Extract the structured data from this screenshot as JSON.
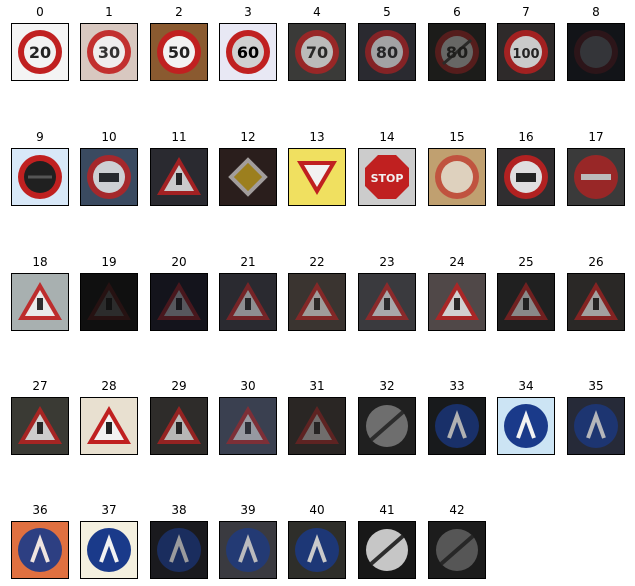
{
  "labels": [
    "0",
    "1",
    "2",
    "3",
    "4",
    "5",
    "6",
    "7",
    "8",
    "9",
    "10",
    "11",
    "12",
    "13",
    "14",
    "15",
    "16",
    "17",
    "18",
    "19",
    "20",
    "21",
    "22",
    "23",
    "24",
    "25",
    "26",
    "27",
    "28",
    "29",
    "30",
    "31",
    "32",
    "33",
    "34",
    "35",
    "36",
    "37",
    "38",
    "39",
    "40",
    "41",
    "42"
  ],
  "sign_texts": {
    "0": "20",
    "1": "30",
    "2": "50",
    "3": "60",
    "4": "70",
    "5": "80",
    "6": "80",
    "7": "100",
    "14": "STOP"
  },
  "sign_kinds": [
    "speed-limit-sign",
    "speed-limit-sign",
    "speed-limit-sign",
    "speed-limit-sign",
    "speed-limit-sign",
    "speed-limit-sign",
    "end-speed-limit-sign",
    "speed-limit-sign",
    "speed-limit-sign",
    "no-passing-sign",
    "no-passing-trucks-sign",
    "right-of-way-sign",
    "priority-road-sign",
    "yield-sign",
    "stop-sign",
    "no-vehicles-sign",
    "no-trucks-sign",
    "no-entry-sign",
    "general-caution-sign",
    "dangerous-curve-left-sign",
    "dangerous-curve-right-sign",
    "double-curve-sign",
    "bumpy-road-sign",
    "slippery-road-sign",
    "road-narrows-sign",
    "road-work-sign",
    "traffic-signals-sign",
    "pedestrians-sign",
    "children-crossing-sign",
    "bicycles-crossing-sign",
    "ice-snow-sign",
    "wild-animals-sign",
    "end-of-limits-sign",
    "turn-right-ahead-sign",
    "turn-left-ahead-sign",
    "ahead-only-sign",
    "straight-or-right-sign",
    "straight-or-left-sign",
    "keep-right-sign",
    "keep-left-sign",
    "roundabout-sign",
    "end-no-passing-sign",
    "end-no-passing-trucks-sign"
  ],
  "colors": {
    "red": "#c02020",
    "blue": "#1a3a8a",
    "yellow": "#e8c020",
    "white": "#f2f2f2"
  }
}
